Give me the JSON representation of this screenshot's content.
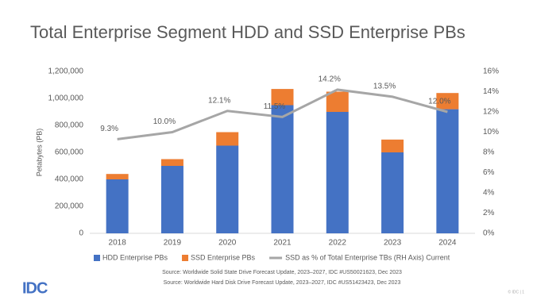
{
  "chart_data": {
    "type": "bar",
    "stacked": true,
    "title": "Total Enterprise Segment HDD and SSD Enterprise PBs",
    "ylabel": "Petabytes (PB)",
    "categories": [
      "2018",
      "2019",
      "2020",
      "2021",
      "2022",
      "2023",
      "2024"
    ],
    "series": [
      {
        "name": "HDD Enterprise PBs",
        "color": "#4472c4",
        "values": [
          400000,
          500000,
          650000,
          950000,
          900000,
          600000,
          920000
        ]
      },
      {
        "name": "SSD Enterprise PBs",
        "color": "#ed7d31",
        "values": [
          40000,
          50000,
          100000,
          120000,
          150000,
          95000,
          120000
        ]
      },
      {
        "name": "SSD as % of Total Enterprise TBs (RH Axis) Current",
        "color": "#a6a6a6",
        "type": "line",
        "axis": "y2",
        "values": [
          9.3,
          10.0,
          12.1,
          11.5,
          14.2,
          13.5,
          12.0
        ],
        "value_labels": [
          "9.3%",
          "10.0%",
          "12.1%",
          "11.5%",
          "14.2%",
          "13.5%",
          "12.0%"
        ]
      }
    ],
    "ylim": [
      0,
      1200000
    ],
    "yticks": [
      0,
      {
        "value": 200000,
        "label": "200,000"
      },
      {
        "value": 400000,
        "label": "400,000"
      },
      {
        "value": 600000,
        "label": "600,000"
      },
      {
        "value": 800000,
        "label": "800,000"
      },
      {
        "value": 1000000,
        "label": "1,000,000"
      },
      {
        "value": 1200000,
        "label": "1,200,000"
      }
    ],
    "y2lim": [
      0,
      16
    ],
    "y2ticks": [
      {
        "value": 0,
        "label": "0%"
      },
      {
        "value": 2,
        "label": "2%"
      },
      {
        "value": 4,
        "label": "4%"
      },
      {
        "value": 6,
        "label": "6%"
      },
      {
        "value": 8,
        "label": "8%"
      },
      {
        "value": 10,
        "label": "10%"
      },
      {
        "value": 12,
        "label": "12%"
      },
      {
        "value": 14,
        "label": "14%"
      },
      {
        "value": 16,
        "label": "16%"
      }
    ],
    "grid": false,
    "legend": "bottom",
    "notes": [
      "Source: Worldwide Solid State Drive Forecast Update, 2023–2027, IDC #US50021623, Dec 2023",
      "Source: Worldwide Hard Disk Drive Forecast Update, 2023–2027, IDC #US51423423, Dec 2023"
    ],
    "logo": "IDC",
    "footer": "© IDC | 1"
  }
}
